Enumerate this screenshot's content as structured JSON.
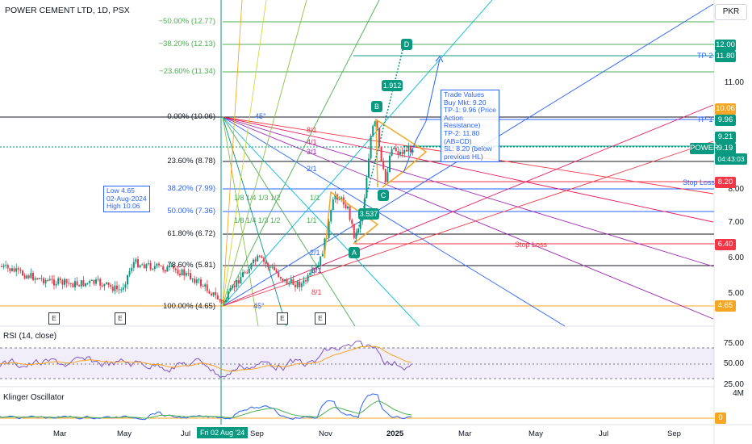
{
  "header": {
    "title": "POWER CEMENT LTD, 1D, PSX",
    "currency_button": "PKR"
  },
  "price_axis": {
    "labels": [
      "11.00",
      "8.00",
      "7.00",
      "6.00",
      "5.00"
    ],
    "badges": [
      {
        "text": "12.00",
        "color": "#089981"
      },
      {
        "text": "11.80",
        "color": "#089981"
      },
      {
        "text": "10.06",
        "color": "#f5a623"
      },
      {
        "text": "9.96",
        "color": "#089981"
      },
      {
        "text": "9.21",
        "color": "#089981"
      },
      {
        "text": "9.19",
        "color": "#089981"
      },
      {
        "text": "04:43:03",
        "color": "#089981"
      },
      {
        "text": "8.20",
        "color": "#f23645"
      },
      {
        "text": "6.40",
        "color": "#f23645"
      },
      {
        "text": "4.65",
        "color": "#f5a623"
      }
    ],
    "symbol_tag": "POWER"
  },
  "fib_levels": [
    {
      "label": "−50.00% (12.77)",
      "color": "#4caf50"
    },
    {
      "label": "−38.20% (12.13)",
      "color": "#4caf50"
    },
    {
      "label": "−23.60% (11.34)",
      "color": "#4caf50"
    },
    {
      "label": "0.00% (10.06)",
      "color": "#131722"
    },
    {
      "label": "23.60% (8.78)",
      "color": "#131722"
    },
    {
      "label": "38.20% (7.99)",
      "color": "#2962ff"
    },
    {
      "label": "50.00% (7.36)",
      "color": "#2962ff"
    },
    {
      "label": "61.80% (6.72)",
      "color": "#131722"
    },
    {
      "label": "78.60% (5.81)",
      "color": "#131722"
    },
    {
      "label": "100.00% (4.65)",
      "color": "#131722"
    }
  ],
  "lines": {
    "tp2": "TP-2",
    "tp1": "TP-1",
    "stop_loss_right": "Stop Loss",
    "stop_loss_mid": "Stop Loss"
  },
  "gann_labels": {
    "deg45_top": "45°",
    "deg45_bottom": "45°",
    "r81": "8/1",
    "r41": "4/1",
    "r31": "3/1",
    "r21": "2/1",
    "r11a": "1/1",
    "r11b": "1/1",
    "r21b": "2/1",
    "r31b": "3/1",
    "r81b": "8/1",
    "fan_a": "1/8 1/4 1/3 1/2",
    "fan_b": "1/8 1/4 1/3 1/2"
  },
  "waves": {
    "a": "A",
    "b": "B",
    "c": "C",
    "d": "D",
    "ratio_top": "1.912",
    "ratio_mid": "3.537"
  },
  "low_note": {
    "line1": "Low 4.65",
    "line2": "02-Aug-2024",
    "line3": "High 10.06"
  },
  "trade_note": {
    "lines": [
      "Trade Values",
      "Buy Mkt: 9.20",
      "TP-1: 9.96 (Price",
      "Action",
      "Resistance)",
      "TP-2: 11.80",
      "(AB=CD)",
      "SL: 8.20 (below",
      "previous HL)"
    ]
  },
  "events": [
    "E",
    "E",
    "E",
    "E"
  ],
  "rsi": {
    "title": "RSI (14, close)",
    "levels": [
      "75.00",
      "50.00",
      "25.00"
    ]
  },
  "klinger": {
    "title": "Klinger Oscillator",
    "scale_top": "4M",
    "zero_badge": "0"
  },
  "time_axis": {
    "labels": [
      "Mar",
      "May",
      "Jul",
      "Sep",
      "Nov",
      "2025",
      "Mar",
      "May",
      "Jul",
      "Sep"
    ],
    "cursor_label": "Fri 02 Aug '24"
  },
  "colors": {
    "up": "#089981",
    "down": "#f23645",
    "blue": "#2962ff",
    "orange": "#f5a623",
    "green": "#4caf50"
  }
}
